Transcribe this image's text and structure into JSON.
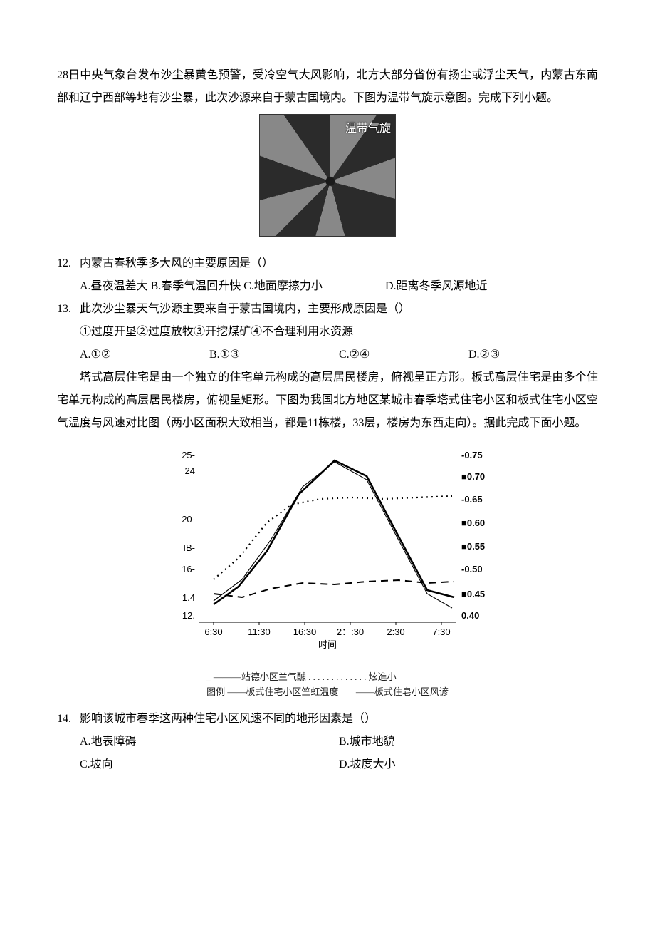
{
  "passage1": {
    "p1": "28日中央气象台发布沙尘暴黄色预警，受冷空气大风影响，北方大部分省份有扬尘或浮尘天气，内蒙古东南部和辽宁西部等地有沙尘暴，此次沙源来自于蒙古国境内。下图为温带气旋示意图。完成下列小题。",
    "fig_label": "温带气旋"
  },
  "q12": {
    "num": "12.",
    "stem": "内蒙古春秋季多大风的主要原因是（）",
    "optA": "A.昼夜温差大",
    "optB": "B.春季气温回升快",
    "optC": "C.地面摩擦力小",
    "optD": "D.距离冬季风源地近"
  },
  "q13": {
    "num": "13.",
    "stem": "此次沙尘暴天气沙源主要来自于蒙古国境内，主要形成原因是（）",
    "sub": "①过度开垦②过度放牧③开挖煤矿④不合理利用水资源",
    "optA": "A.①②",
    "optB": "B.①③",
    "optC": "C.②④",
    "optD": "D.②③"
  },
  "passage2": {
    "p1": "塔式高层住宅是由一个独立的住宅单元构成的高层居民楼房，俯视呈正方形。板式高层住宅是由多个住宅单元构成的高层居民楼房，俯视呈矩形。下图为我国北方地区某城市春季塔式住宅小区和板式住宅小区空气温度与风速对比图（两小区面积大致相当，都是11栋楼，33层，楼房为东西走向）。据此完成下面小题。"
  },
  "chart": {
    "x_labels": [
      "6:30",
      "11:30",
      "16:30",
      "2：:30",
      "2:30",
      "7:30"
    ],
    "x_title": "时间",
    "y_left_ticks": [
      "25-",
      "24",
      "20-",
      "IB-",
      "16-",
      "1.4",
      "12."
    ],
    "y_left_pos": [
      0,
      22,
      90,
      130,
      160,
      200,
      225
    ],
    "y_right_ticks": [
      "-0.75",
      "■0.70",
      "-0.65",
      "■0.60",
      "■0.55",
      "-0.50",
      "■0.45",
      "0.40"
    ],
    "y_right_pos": [
      0,
      30,
      62,
      95,
      128,
      160,
      195,
      225
    ],
    "legend_line1_left": "_ ———站德小区兰气醵",
    "legend_line1_right": ". . . . . . . . . . . . . 炫進小",
    "legend_line2_left": "图例 ——板式住宅小区竺虹温度",
    "legend_line2_right": "——板式住皂小区风谚",
    "series": {
      "temp_thin": {
        "color": "#000",
        "width": 1.1,
        "dash": "",
        "pts": [
          [
            20,
            205
          ],
          [
            60,
            175
          ],
          [
            100,
            120
          ],
          [
            145,
            45
          ],
          [
            190,
            10
          ],
          [
            235,
            35
          ],
          [
            280,
            120
          ],
          [
            320,
            195
          ],
          [
            355,
            215
          ]
        ]
      },
      "temp_thick": {
        "color": "#000",
        "width": 2.6,
        "dash": "",
        "pts": [
          [
            20,
            210
          ],
          [
            55,
            185
          ],
          [
            95,
            135
          ],
          [
            140,
            55
          ],
          [
            190,
            8
          ],
          [
            235,
            30
          ],
          [
            280,
            115
          ],
          [
            320,
            190
          ],
          [
            358,
            200
          ]
        ]
      },
      "wind_dot": {
        "color": "#000",
        "width": 2.2,
        "dash": "2 5",
        "pts": [
          [
            20,
            175
          ],
          [
            55,
            145
          ],
          [
            95,
            95
          ],
          [
            130,
            70
          ],
          [
            170,
            62
          ],
          [
            215,
            60
          ],
          [
            260,
            62
          ],
          [
            305,
            60
          ],
          [
            355,
            58
          ]
        ]
      },
      "wind_dash": {
        "color": "#000",
        "width": 2.0,
        "dash": "10 7",
        "pts": [
          [
            20,
            195
          ],
          [
            60,
            200
          ],
          [
            100,
            188
          ],
          [
            145,
            180
          ],
          [
            190,
            182
          ],
          [
            235,
            178
          ],
          [
            280,
            176
          ],
          [
            320,
            180
          ],
          [
            358,
            178
          ]
        ]
      }
    }
  },
  "q14": {
    "num": "14.",
    "stem": "影响该城市春季这两种住宅小区风速不同的地形因素是（）",
    "optA": "A.地表障碍",
    "optB": "B.城市地貌",
    "optC": "C.坡向",
    "optD": "D.坡度大小"
  }
}
